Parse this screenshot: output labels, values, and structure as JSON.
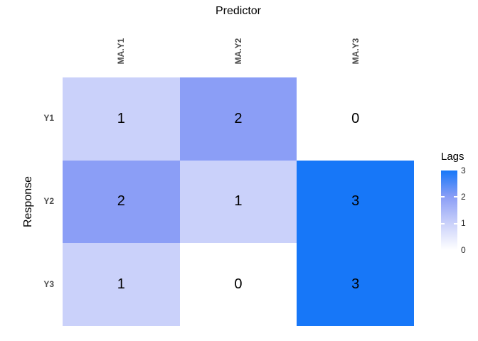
{
  "titles": {
    "top": "Predictor",
    "left": "Response"
  },
  "axis": {
    "columns": [
      "MA.Y1",
      "MA.Y2",
      "MA.Y3"
    ],
    "rows": [
      "Y1",
      "Y2",
      "Y3"
    ]
  },
  "legend": {
    "title": "Lags",
    "ticks": [
      "3",
      "2",
      "1",
      "0"
    ]
  },
  "colors": {
    "scale_low": "#FFFFFF",
    "scale_high": "#1777F8",
    "axis_text": "#4D4D4D",
    "title_text": "#000000"
  },
  "chart_data": {
    "type": "heatmap",
    "x": [
      "MA.Y1",
      "MA.Y2",
      "MA.Y3"
    ],
    "y": [
      "Y1",
      "Y2",
      "Y3"
    ],
    "values": [
      [
        1,
        2,
        0
      ],
      [
        2,
        1,
        3
      ],
      [
        1,
        0,
        3
      ]
    ],
    "title": "Predictor",
    "xlabel": "Predictor",
    "ylabel": "Response",
    "legend": {
      "title": "Lags",
      "range": [
        0,
        3
      ],
      "ticks": [
        3,
        2,
        1,
        0
      ],
      "position": "right"
    },
    "colorscale": {
      "0": "#FFFFFF",
      "1": "#CAD1FA",
      "2": "#8B9EF6",
      "3": "#1777F8"
    },
    "grid": false
  }
}
